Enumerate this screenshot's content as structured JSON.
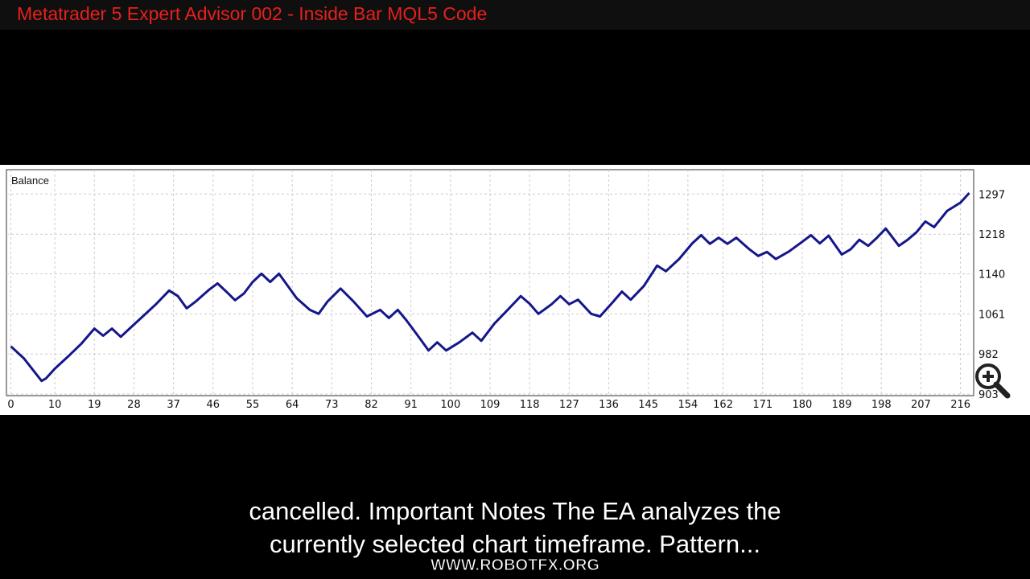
{
  "header": {
    "title": "Metatrader 5 Expert Advisor  002 - Inside Bar  MQL5 Code"
  },
  "caption": {
    "lines": [
      "cancelled. Important Notes The EA analyzes the",
      "currently selected chart timeframe. Pattern..."
    ]
  },
  "watermark": "WWW.ROBOTFX.ORG",
  "chart_data": {
    "type": "line",
    "x": [
      0,
      3,
      7,
      8,
      10,
      13,
      16,
      19,
      21,
      23,
      25,
      27,
      30,
      33,
      36,
      38,
      40,
      42,
      45,
      47,
      49,
      51,
      53,
      55,
      57,
      59,
      61,
      63,
      65,
      68,
      70,
      72,
      75,
      78,
      81,
      84,
      86,
      88,
      90,
      93,
      95,
      97,
      99,
      102,
      105,
      107,
      110,
      113,
      116,
      118,
      120,
      123,
      125,
      127,
      129,
      132,
      134,
      137,
      139,
      141,
      144,
      147,
      149,
      152,
      155,
      157,
      159,
      161,
      163,
      165,
      168,
      170,
      172,
      174,
      177,
      180,
      182,
      184,
      186,
      189,
      191,
      193,
      195,
      197,
      199,
      202,
      204,
      206,
      208,
      210,
      213,
      216,
      218
    ],
    "series": [
      {
        "name": "Balance",
        "color": "#16168a",
        "values": [
          997,
          973,
          929,
          934,
          953,
          977,
          1002,
          1032,
          1018,
          1032,
          1016,
          1032,
          1056,
          1080,
          1107,
          1096,
          1072,
          1085,
          1108,
          1121,
          1105,
          1088,
          1101,
          1124,
          1140,
          1124,
          1140,
          1116,
          1092,
          1069,
          1061,
          1085,
          1111,
          1085,
          1056,
          1069,
          1053,
          1069,
          1048,
          1013,
          989,
          1005,
          989,
          1005,
          1024,
          1008,
          1042,
          1069,
          1096,
          1081,
          1061,
          1080,
          1096,
          1080,
          1089,
          1061,
          1056,
          1085,
          1105,
          1089,
          1116,
          1156,
          1145,
          1169,
          1200,
          1216,
          1199,
          1211,
          1199,
          1211,
          1188,
          1175,
          1183,
          1169,
          1184,
          1203,
          1216,
          1200,
          1215,
          1178,
          1188,
          1207,
          1195,
          1211,
          1229,
          1195,
          1207,
          1222,
          1243,
          1232,
          1264,
          1280,
          1299
        ]
      }
    ],
    "xlim": [
      -1,
      219
    ],
    "ylim": [
      900,
      1345
    ],
    "xticks": [
      0,
      10,
      19,
      28,
      37,
      46,
      55,
      64,
      73,
      82,
      91,
      100,
      109,
      118,
      127,
      136,
      145,
      154,
      162,
      171,
      180,
      189,
      198,
      207,
      216
    ],
    "yticks": [
      903,
      982,
      1061,
      1140,
      1218,
      1297
    ],
    "grid": true
  }
}
